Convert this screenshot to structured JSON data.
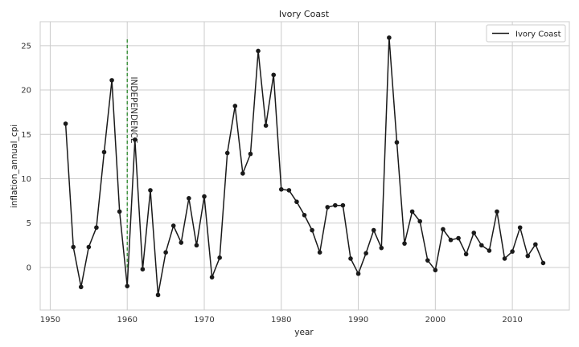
{
  "chart_data": {
    "type": "line",
    "title": "Ivory Coast",
    "xlabel": "year",
    "ylabel": "inflation_annual_cpi",
    "xlim": [
      1948.7,
      2017.4
    ],
    "ylim": [
      -4.8,
      27.7
    ],
    "xticks": [
      1950,
      1960,
      1970,
      1980,
      1990,
      2000,
      2010
    ],
    "yticks": [
      0,
      5,
      10,
      15,
      20,
      25
    ],
    "grid": true,
    "legend_position": "top-right",
    "colors": {
      "line": "#1a1a1a",
      "grid": "#cccccc",
      "annotation": "#2e8b2e",
      "spine": "#cccccc"
    },
    "series": [
      {
        "name": "Ivory Coast",
        "x": [
          1952,
          1953,
          1954,
          1955,
          1956,
          1957,
          1958,
          1959,
          1960,
          1961,
          1962,
          1963,
          1964,
          1965,
          1966,
          1967,
          1968,
          1969,
          1970,
          1971,
          1972,
          1973,
          1974,
          1975,
          1976,
          1977,
          1978,
          1979,
          1980,
          1981,
          1982,
          1983,
          1984,
          1985,
          1986,
          1987,
          1988,
          1989,
          1990,
          1991,
          1992,
          1993,
          1994,
          1995,
          1996,
          1997,
          1998,
          1999,
          2000,
          2001,
          2002,
          2003,
          2004,
          2005,
          2006,
          2007,
          2008,
          2009,
          2010,
          2011,
          2012,
          2013,
          2014
        ],
        "values": [
          16.2,
          2.3,
          -2.2,
          2.3,
          4.5,
          13.0,
          21.1,
          6.3,
          -2.1,
          14.4,
          -0.2,
          8.7,
          -3.1,
          1.7,
          4.7,
          2.8,
          7.8,
          2.5,
          8.0,
          -1.1,
          1.1,
          12.9,
          18.2,
          10.6,
          12.8,
          24.4,
          16.0,
          21.7,
          8.8,
          8.7,
          7.4,
          5.9,
          4.2,
          1.7,
          6.8,
          7.0,
          7.0,
          1.0,
          -0.7,
          1.6,
          4.2,
          2.2,
          25.9,
          14.1,
          2.7,
          6.3,
          5.2,
          0.8,
          -0.3,
          4.3,
          3.1,
          3.3,
          1.5,
          3.9,
          2.5,
          1.9,
          6.3,
          1.0,
          1.8,
          4.5,
          1.3,
          2.6,
          0.5
        ]
      }
    ],
    "annotation": {
      "label": "INDEPENDENCE",
      "x": 1960,
      "y_range": [
        0,
        25.9
      ]
    }
  }
}
